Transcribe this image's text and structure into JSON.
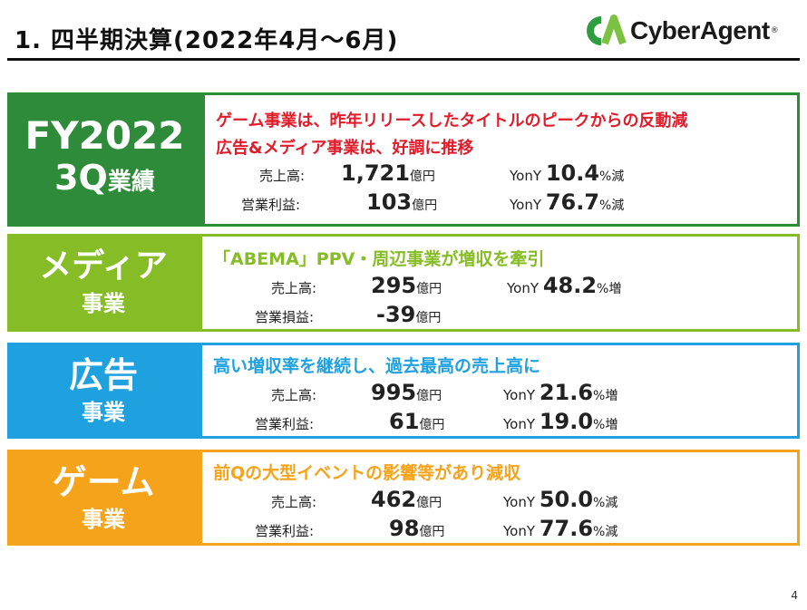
{
  "header": {
    "title": "1. 四半期決算(2022年4月〜6月)",
    "logo_mark": "CA",
    "logo_text": "CyberAgent",
    "logo_reg": "®"
  },
  "colors": {
    "fy": "#2e8b3a",
    "media": "#86bc25",
    "ad": "#1fa1e0",
    "game": "#f5a31a",
    "fy_headline": "#e01b2a"
  },
  "fy": {
    "label_line1": "FY2022",
    "label_line2a": "3Q",
    "label_line2b": "業績",
    "headline1": "ゲーム事業は、昨年リリースしたタイトルのピークからの反動減",
    "headline2": "広告&メディア事業は、好調に推移",
    "rows": [
      {
        "label": "売上高:",
        "value": "1,721",
        "unit": "億円",
        "yony_label": "YonY",
        "yony": "10.4",
        "yony_unit": "%減"
      },
      {
        "label": "営業利益:",
        "value": "103",
        "unit": "億円",
        "yony_label": "YonY",
        "yony": "76.7",
        "yony_unit": "%減"
      }
    ]
  },
  "media": {
    "label_line1": "メディア",
    "label_line2": "事業",
    "headline": "「ABEMA」PPV・周辺事業が増収を牽引",
    "rows": [
      {
        "label": "売上高:",
        "value": "295",
        "unit": "億円",
        "yony_label": "YonY",
        "yony": "48.2",
        "yony_unit": "%増"
      },
      {
        "label": "営業損益:",
        "value": "-39",
        "unit": "億円",
        "yony_label": "",
        "yony": "",
        "yony_unit": ""
      }
    ]
  },
  "ad": {
    "label_line1": "広告",
    "label_line2": "事業",
    "headline": "高い増収率を継続し、過去最高の売上高に",
    "rows": [
      {
        "label": "売上高:",
        "value": "995",
        "unit": "億円",
        "yony_label": "YonY",
        "yony": "21.6",
        "yony_unit": "%増"
      },
      {
        "label": "営業利益:",
        "value": "61",
        "unit": "億円",
        "yony_label": "YonY",
        "yony": "19.0",
        "yony_unit": "%増"
      }
    ]
  },
  "game": {
    "label_line1": "ゲーム",
    "label_line2": "事業",
    "headline": "前Qの大型イベントの影響等があり減収",
    "rows": [
      {
        "label": "売上高:",
        "value": "462",
        "unit": "億円",
        "yony_label": "YonY",
        "yony": "50.0",
        "yony_unit": "%減"
      },
      {
        "label": "営業利益:",
        "value": "98",
        "unit": "億円",
        "yony_label": "YonY",
        "yony": "77.6",
        "yony_unit": "%減"
      }
    ]
  },
  "page_number": "4"
}
